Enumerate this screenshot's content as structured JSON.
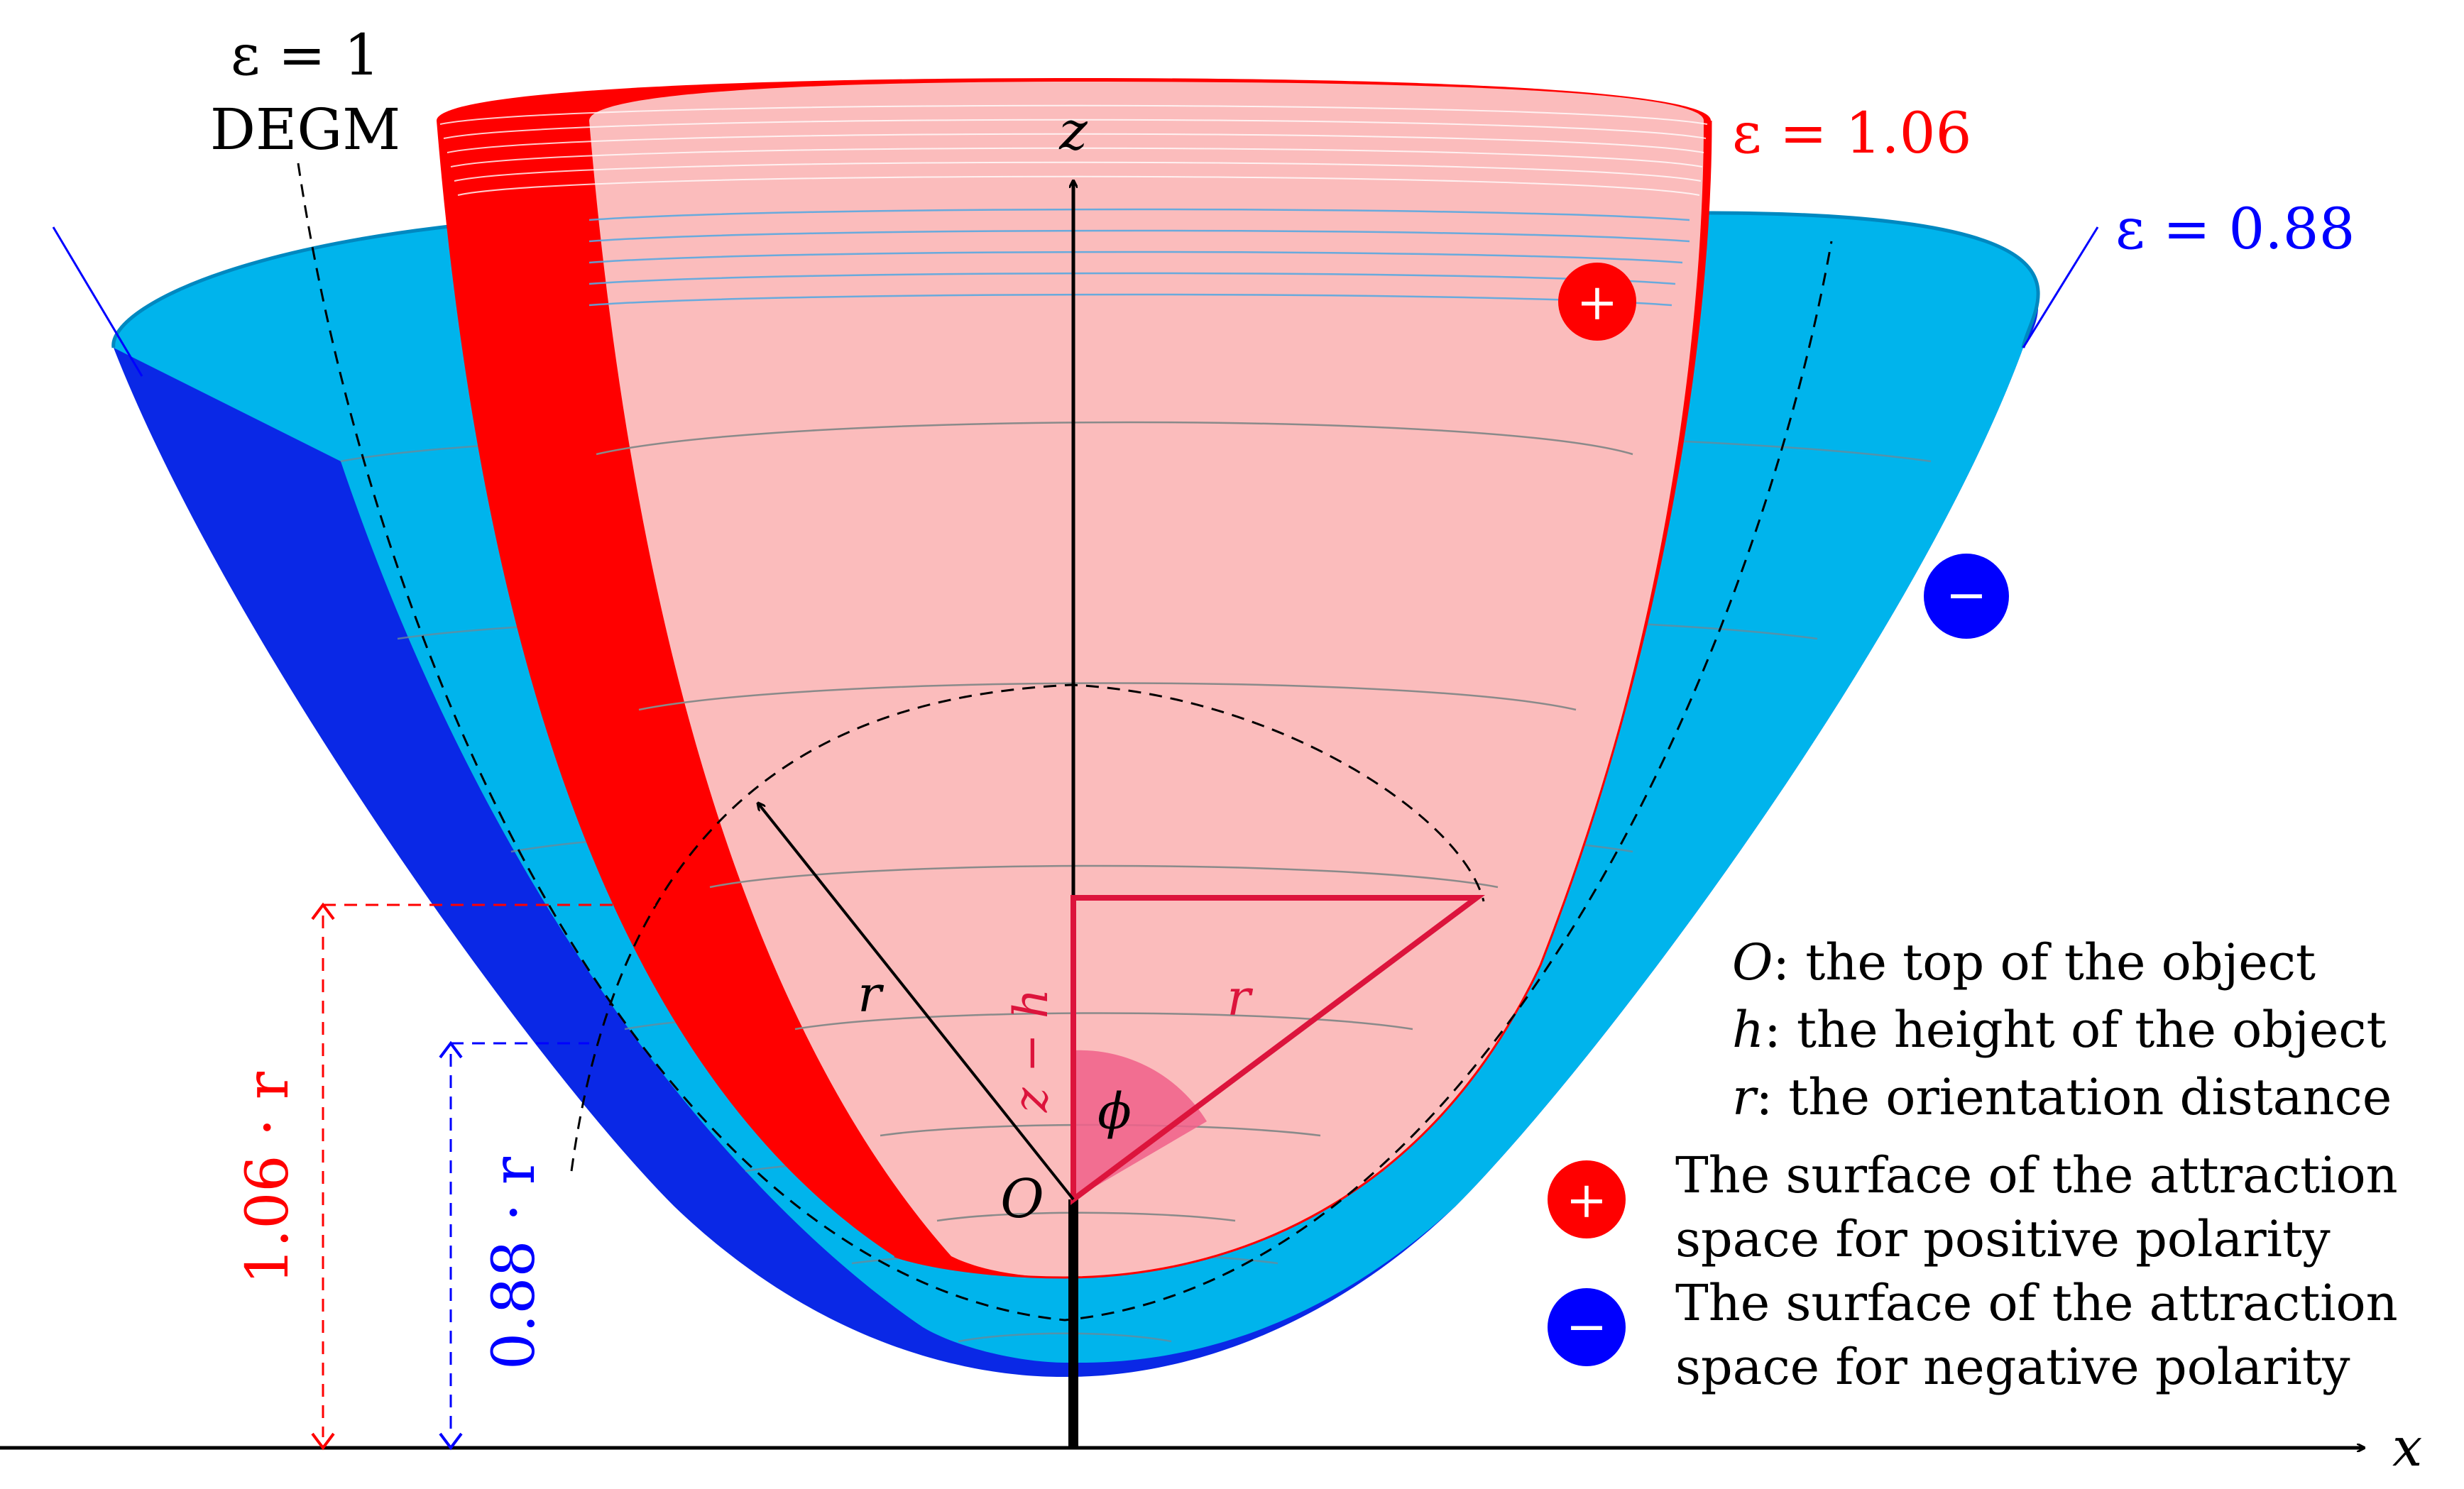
{
  "labels": {
    "eps_degm": "ε = 1",
    "degm": "DEGM",
    "eps_red": "ε = 1.06",
    "eps_blue": "ε = 0.88",
    "z_axis": "z",
    "x_axis": "x",
    "origin": "O",
    "r_left": "r",
    "r_triangle": "r",
    "z_minus_h": "z − h",
    "phi": "ϕ",
    "red_dim": "1.06 · r",
    "blue_dim": "0.88 · r",
    "plus_sign": "+",
    "minus_sign": "−"
  },
  "legend": {
    "o_key": "O",
    "o_text": ": the top of the object",
    "h_key": "h",
    "h_text": ": the height of the object",
    "r_key": "r",
    "r_text": ": the orientation distance",
    "pos_line1": "The surface of the attraction",
    "pos_line2": "space for positive polarity",
    "neg_line1": "The surface of the attraction",
    "neg_line2": "space for negative polarity"
  },
  "colors": {
    "red": "#ff0000",
    "blue": "#0000ff",
    "crimson": "#dc143c",
    "light_blue": "#00b4ec",
    "dark_blue": "#0a28e6",
    "pink": "#fbbcbc"
  }
}
